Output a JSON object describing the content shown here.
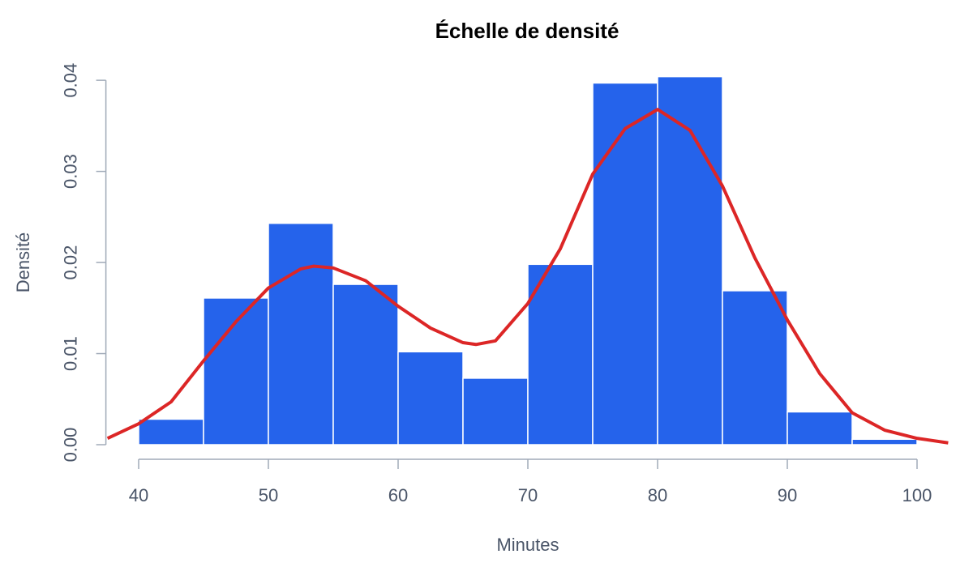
{
  "chart_data": {
    "type": "histogram",
    "title": "Échelle de densité",
    "x_label": "Minutes",
    "y_label": "Densité",
    "bins": [
      40,
      45,
      50,
      55,
      60,
      65,
      70,
      75,
      80,
      85,
      90,
      95,
      100
    ],
    "values": [
      0.0028,
      0.0161,
      0.0243,
      0.0176,
      0.0102,
      0.0073,
      0.0198,
      0.0397,
      0.0404,
      0.0169,
      0.0036,
      0.0006
    ],
    "color": "#2563eb",
    "edge_color": "#ffffff",
    "curve": {
      "color": "#dc2626",
      "x": [
        37.6,
        40,
        42.5,
        45,
        47.5,
        50,
        52.5,
        53.5,
        55,
        57.5,
        60,
        62.5,
        65,
        66,
        67.5,
        70,
        72.5,
        75,
        77.5,
        80,
        82.5,
        85,
        87.5,
        90,
        92.5,
        95,
        97.5,
        100,
        102.4
      ],
      "values": [
        0.0007,
        0.0023,
        0.0047,
        0.0092,
        0.0135,
        0.0172,
        0.0193,
        0.0196,
        0.0194,
        0.018,
        0.0152,
        0.0128,
        0.0112,
        0.011,
        0.0114,
        0.0155,
        0.0215,
        0.0297,
        0.0347,
        0.0368,
        0.0345,
        0.0284,
        0.0205,
        0.0137,
        0.0078,
        0.0035,
        0.0016,
        0.0007,
        0.0002
      ]
    },
    "xlim": [
      37.6,
      102.4
    ],
    "ylim": [
      -0.0016,
      0.0417
    ],
    "xticks": [
      40,
      50,
      60,
      70,
      80,
      90,
      100
    ],
    "yticks": [
      {
        "value": 0,
        "label": "0.00"
      },
      0.01,
      0.02,
      0.03,
      0.04
    ]
  }
}
